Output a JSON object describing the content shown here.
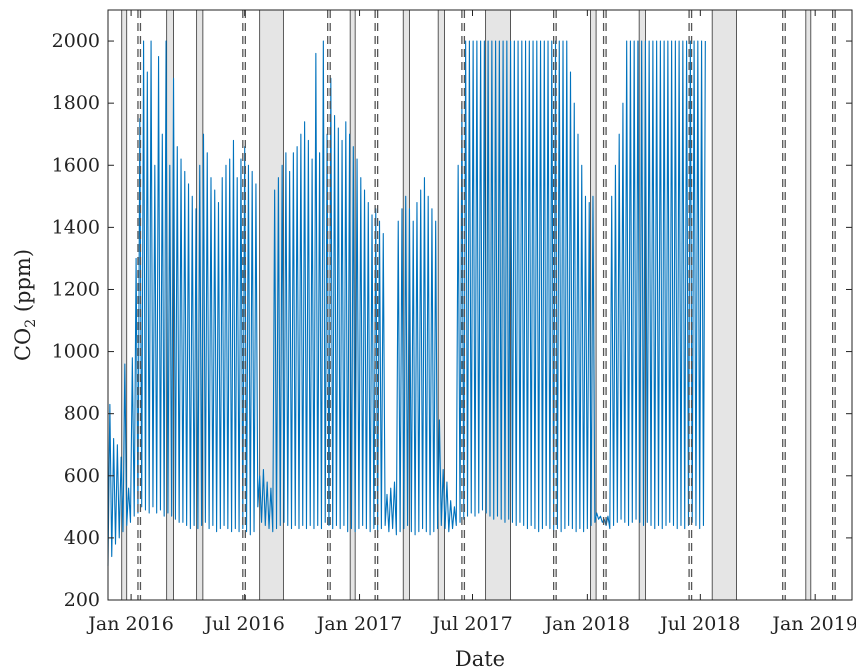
{
  "chart_data": {
    "type": "line",
    "title": "",
    "xlabel": "Date",
    "ylabel_main": "CO",
    "ylabel_subscript": "2",
    "ylabel_unit": " (ppm)",
    "xlim": [
      "2015-11-25",
      "2019-03-01"
    ],
    "ylim": [
      200,
      2100
    ],
    "grid": false,
    "legend": "none",
    "series_color": "#0072BD",
    "shade_color": "#E5E5E5",
    "dashed_color": "#555555",
    "yticks": [
      {
        "value": 200,
        "label": "200"
      },
      {
        "value": 400,
        "label": "400"
      },
      {
        "value": 600,
        "label": "600"
      },
      {
        "value": 800,
        "label": "800"
      },
      {
        "value": 1000,
        "label": "1000"
      },
      {
        "value": 1200,
        "label": "1200"
      },
      {
        "value": 1400,
        "label": "1400"
      },
      {
        "value": 1600,
        "label": "1600"
      },
      {
        "value": 1800,
        "label": "1800"
      },
      {
        "value": 2000,
        "label": "2000"
      }
    ],
    "xticks": [
      {
        "date": "2016-01-01",
        "label": "Jan 2016"
      },
      {
        "date": "2016-07-01",
        "label": "Jul 2016"
      },
      {
        "date": "2017-01-01",
        "label": "Jan 2017"
      },
      {
        "date": "2017-07-01",
        "label": "Jul 2017"
      },
      {
        "date": "2018-01-01",
        "label": "Jan 2018"
      },
      {
        "date": "2018-07-01",
        "label": "Jul 2018"
      },
      {
        "date": "2019-01-01",
        "label": "Jan 2019"
      }
    ],
    "shaded_periods": [
      {
        "start": "2015-12-17",
        "end": "2015-12-25"
      },
      {
        "start": "2016-02-27",
        "end": "2016-03-09"
      },
      {
        "start": "2016-04-15",
        "end": "2016-04-25"
      },
      {
        "start": "2016-07-25",
        "end": "2016-09-01"
      },
      {
        "start": "2016-12-17",
        "end": "2016-12-25"
      },
      {
        "start": "2017-03-12",
        "end": "2017-03-22"
      },
      {
        "start": "2017-05-07",
        "end": "2017-05-17"
      },
      {
        "start": "2017-07-22",
        "end": "2017-08-31"
      },
      {
        "start": "2018-01-06",
        "end": "2018-01-15"
      },
      {
        "start": "2018-03-25",
        "end": "2018-04-04"
      },
      {
        "start": "2018-07-20",
        "end": "2018-08-28"
      },
      {
        "start": "2018-12-17",
        "end": "2018-12-25"
      }
    ],
    "event_markers": [
      {
        "start": "2016-01-12",
        "end": "2016-01-16"
      },
      {
        "start": "2016-06-28",
        "end": "2016-07-02"
      },
      {
        "start": "2016-11-11",
        "end": "2016-11-15"
      },
      {
        "start": "2017-01-26",
        "end": "2017-01-30"
      },
      {
        "start": "2017-06-14",
        "end": "2017-06-18"
      },
      {
        "start": "2017-11-08",
        "end": "2017-11-12"
      },
      {
        "start": "2018-01-27",
        "end": "2018-01-31"
      },
      {
        "start": "2018-06-13",
        "end": "2018-06-17"
      },
      {
        "start": "2018-11-10",
        "end": "2018-11-14"
      },
      {
        "start": "2019-01-29",
        "end": "2019-02-02"
      }
    ],
    "series": [
      {
        "sample_interval_days": 3,
        "values": [
          "2015-11-25",
          310,
          830,
          340,
          720,
          380,
          700,
          400,
          660,
          420,
          960,
          440,
          560,
          450,
          980,
          470,
          1300,
          480,
          1750,
          500,
          2000,
          490,
          1900,
          480,
          2000,
          500,
          1600,
          480,
          1950,
          490,
          1700,
          470,
          2000,
          480,
          1600,
          470,
          1880,
          460,
          1660,
          450,
          1620,
          450,
          1580,
          440,
          1540,
          430,
          1500,
          440,
          1460,
          430,
          1600,
          440,
          1700,
          450,
          1640,
          430,
          1560,
          440,
          1520,
          420,
          1480,
          430,
          1560,
          440,
          1600,
          430,
          1620,
          420,
          1680,
          430,
          1560,
          420,
          1620,
          430,
          1660,
          420,
          1600,
          410,
          1580,
          420,
          1540,
          500,
          600,
          450,
          620,
          440,
          580,
          430,
          560,
          420,
          1520,
          430,
          1560,
          440,
          1600,
          450,
          1640,
          440,
          1580,
          430,
          1640,
          440,
          1660,
          430,
          1700,
          440,
          1740,
          430,
          1680,
          440,
          1620,
          430,
          1960,
          440,
          1640,
          430,
          2000,
          450,
          1700,
          440,
          1880,
          430,
          1760,
          440,
          1720,
          430,
          1680,
          440,
          1740,
          420,
          1700,
          430,
          1660,
          420,
          1620,
          430,
          1560,
          440,
          1520,
          430,
          1480,
          420,
          1440,
          430,
          1460,
          420,
          1420,
          430,
          1380,
          440,
          540,
          420,
          560,
          430,
          580,
          410,
          1420,
          420,
          1460,
          430,
          1500,
          440,
          1460,
          420,
          1420,
          410,
          1480,
          420,
          1520,
          430,
          1560,
          420,
          1500,
          410,
          1460,
          420,
          1420,
          430,
          780,
          440,
          620,
          430,
          580,
          420,
          520,
          430,
          500,
          440,
          1600,
          450,
          1800,
          460,
          2000,
          470,
          2000,
          480,
          2000,
          470,
          2000,
          480,
          2000,
          490,
          2000,
          480,
          2000,
          470,
          2000,
          460,
          2000,
          470,
          2000,
          460,
          2000,
          450,
          2000,
          460,
          2000,
          450,
          2000,
          440,
          2000,
          450,
          2000,
          440,
          2000,
          430,
          2000,
          440,
          2000,
          430,
          2000,
          420,
          2000,
          430,
          2000,
          440,
          2000,
          430,
          2000,
          420,
          2000,
          430,
          2000,
          420,
          2000,
          430,
          2000,
          440,
          1900,
          430,
          1800,
          420,
          1700,
          430,
          1600,
          420,
          1500,
          430,
          1480,
          440,
          1500,
          450,
          480,
          460,
          470,
          450,
          460,
          440,
          470,
          430,
          1500,
          440,
          1600,
          450,
          1700,
          460,
          1800,
          450,
          2000,
          440,
          2000,
          450,
          2000,
          460,
          2000,
          450,
          2000,
          440,
          2000,
          450,
          2000,
          440,
          2000,
          430,
          2000,
          440,
          2000,
          430,
          2000,
          440,
          2000,
          450,
          2000,
          440,
          2000,
          430,
          2000,
          440,
          2000,
          430,
          2000,
          440,
          2000,
          450,
          2000,
          440,
          2000,
          430,
          2000,
          440,
          2000
        ]
      }
    ]
  }
}
